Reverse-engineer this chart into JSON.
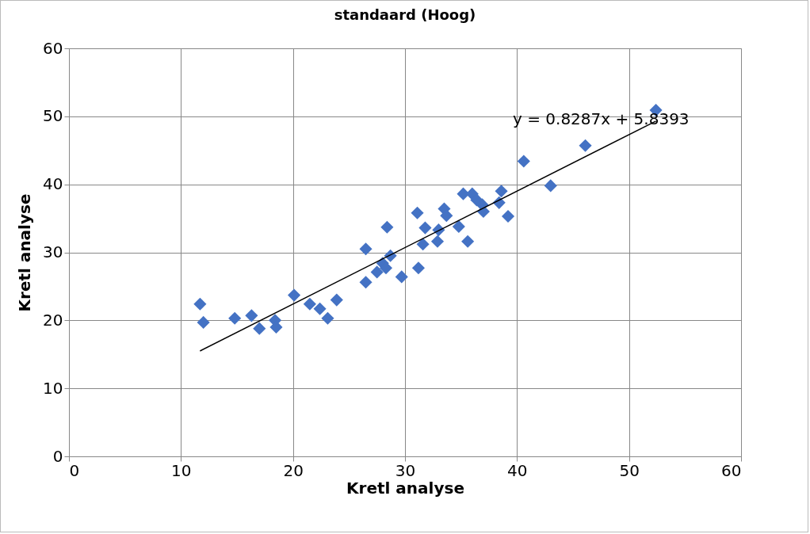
{
  "chart_data": {
    "type": "scatter",
    "title": "standaard (Hoog)",
    "xlabel": "Kretl analyse",
    "ylabel": "Kretl analyse",
    "xlim": [
      0,
      60
    ],
    "ylim": [
      0,
      60
    ],
    "xticks": [
      0,
      10,
      20,
      30,
      40,
      50,
      60
    ],
    "yticks": [
      0,
      10,
      20,
      30,
      40,
      50,
      60
    ],
    "grid": true,
    "annotations": [
      "y = 0.8287x + 5.8393"
    ],
    "series": [
      {
        "marker": "diamond",
        "color": "#4472c4",
        "x": [
          11.7,
          12.0,
          14.8,
          16.3,
          17.0,
          18.4,
          18.5,
          20.1,
          21.5,
          22.4,
          23.1,
          23.9,
          26.5,
          26.5,
          27.5,
          28.0,
          28.3,
          28.4,
          28.7,
          29.7,
          31.1,
          31.2,
          31.6,
          31.8,
          32.9,
          33.0,
          33.5,
          33.7,
          34.8,
          35.2,
          35.6,
          36.0,
          36.4,
          36.9,
          37.0,
          38.4,
          38.6,
          39.2,
          40.6,
          43.0,
          46.1,
          52.4
        ],
        "values": [
          22.4,
          19.7,
          20.3,
          20.7,
          18.8,
          20.0,
          19.0,
          23.7,
          22.4,
          21.7,
          20.3,
          23.0,
          30.5,
          25.6,
          27.1,
          28.4,
          27.7,
          33.7,
          29.5,
          26.4,
          35.8,
          27.7,
          31.2,
          33.6,
          31.6,
          33.3,
          36.4,
          35.4,
          33.8,
          38.6,
          31.6,
          38.6,
          37.7,
          37.0,
          36.0,
          37.3,
          39.0,
          35.3,
          43.4,
          39.8,
          45.7,
          50.9
        ]
      },
      {
        "type": "line",
        "marker": "none",
        "color": "#000000",
        "x": [
          11.7,
          52.4
        ],
        "values": [
          15.5,
          49.3
        ]
      }
    ]
  }
}
